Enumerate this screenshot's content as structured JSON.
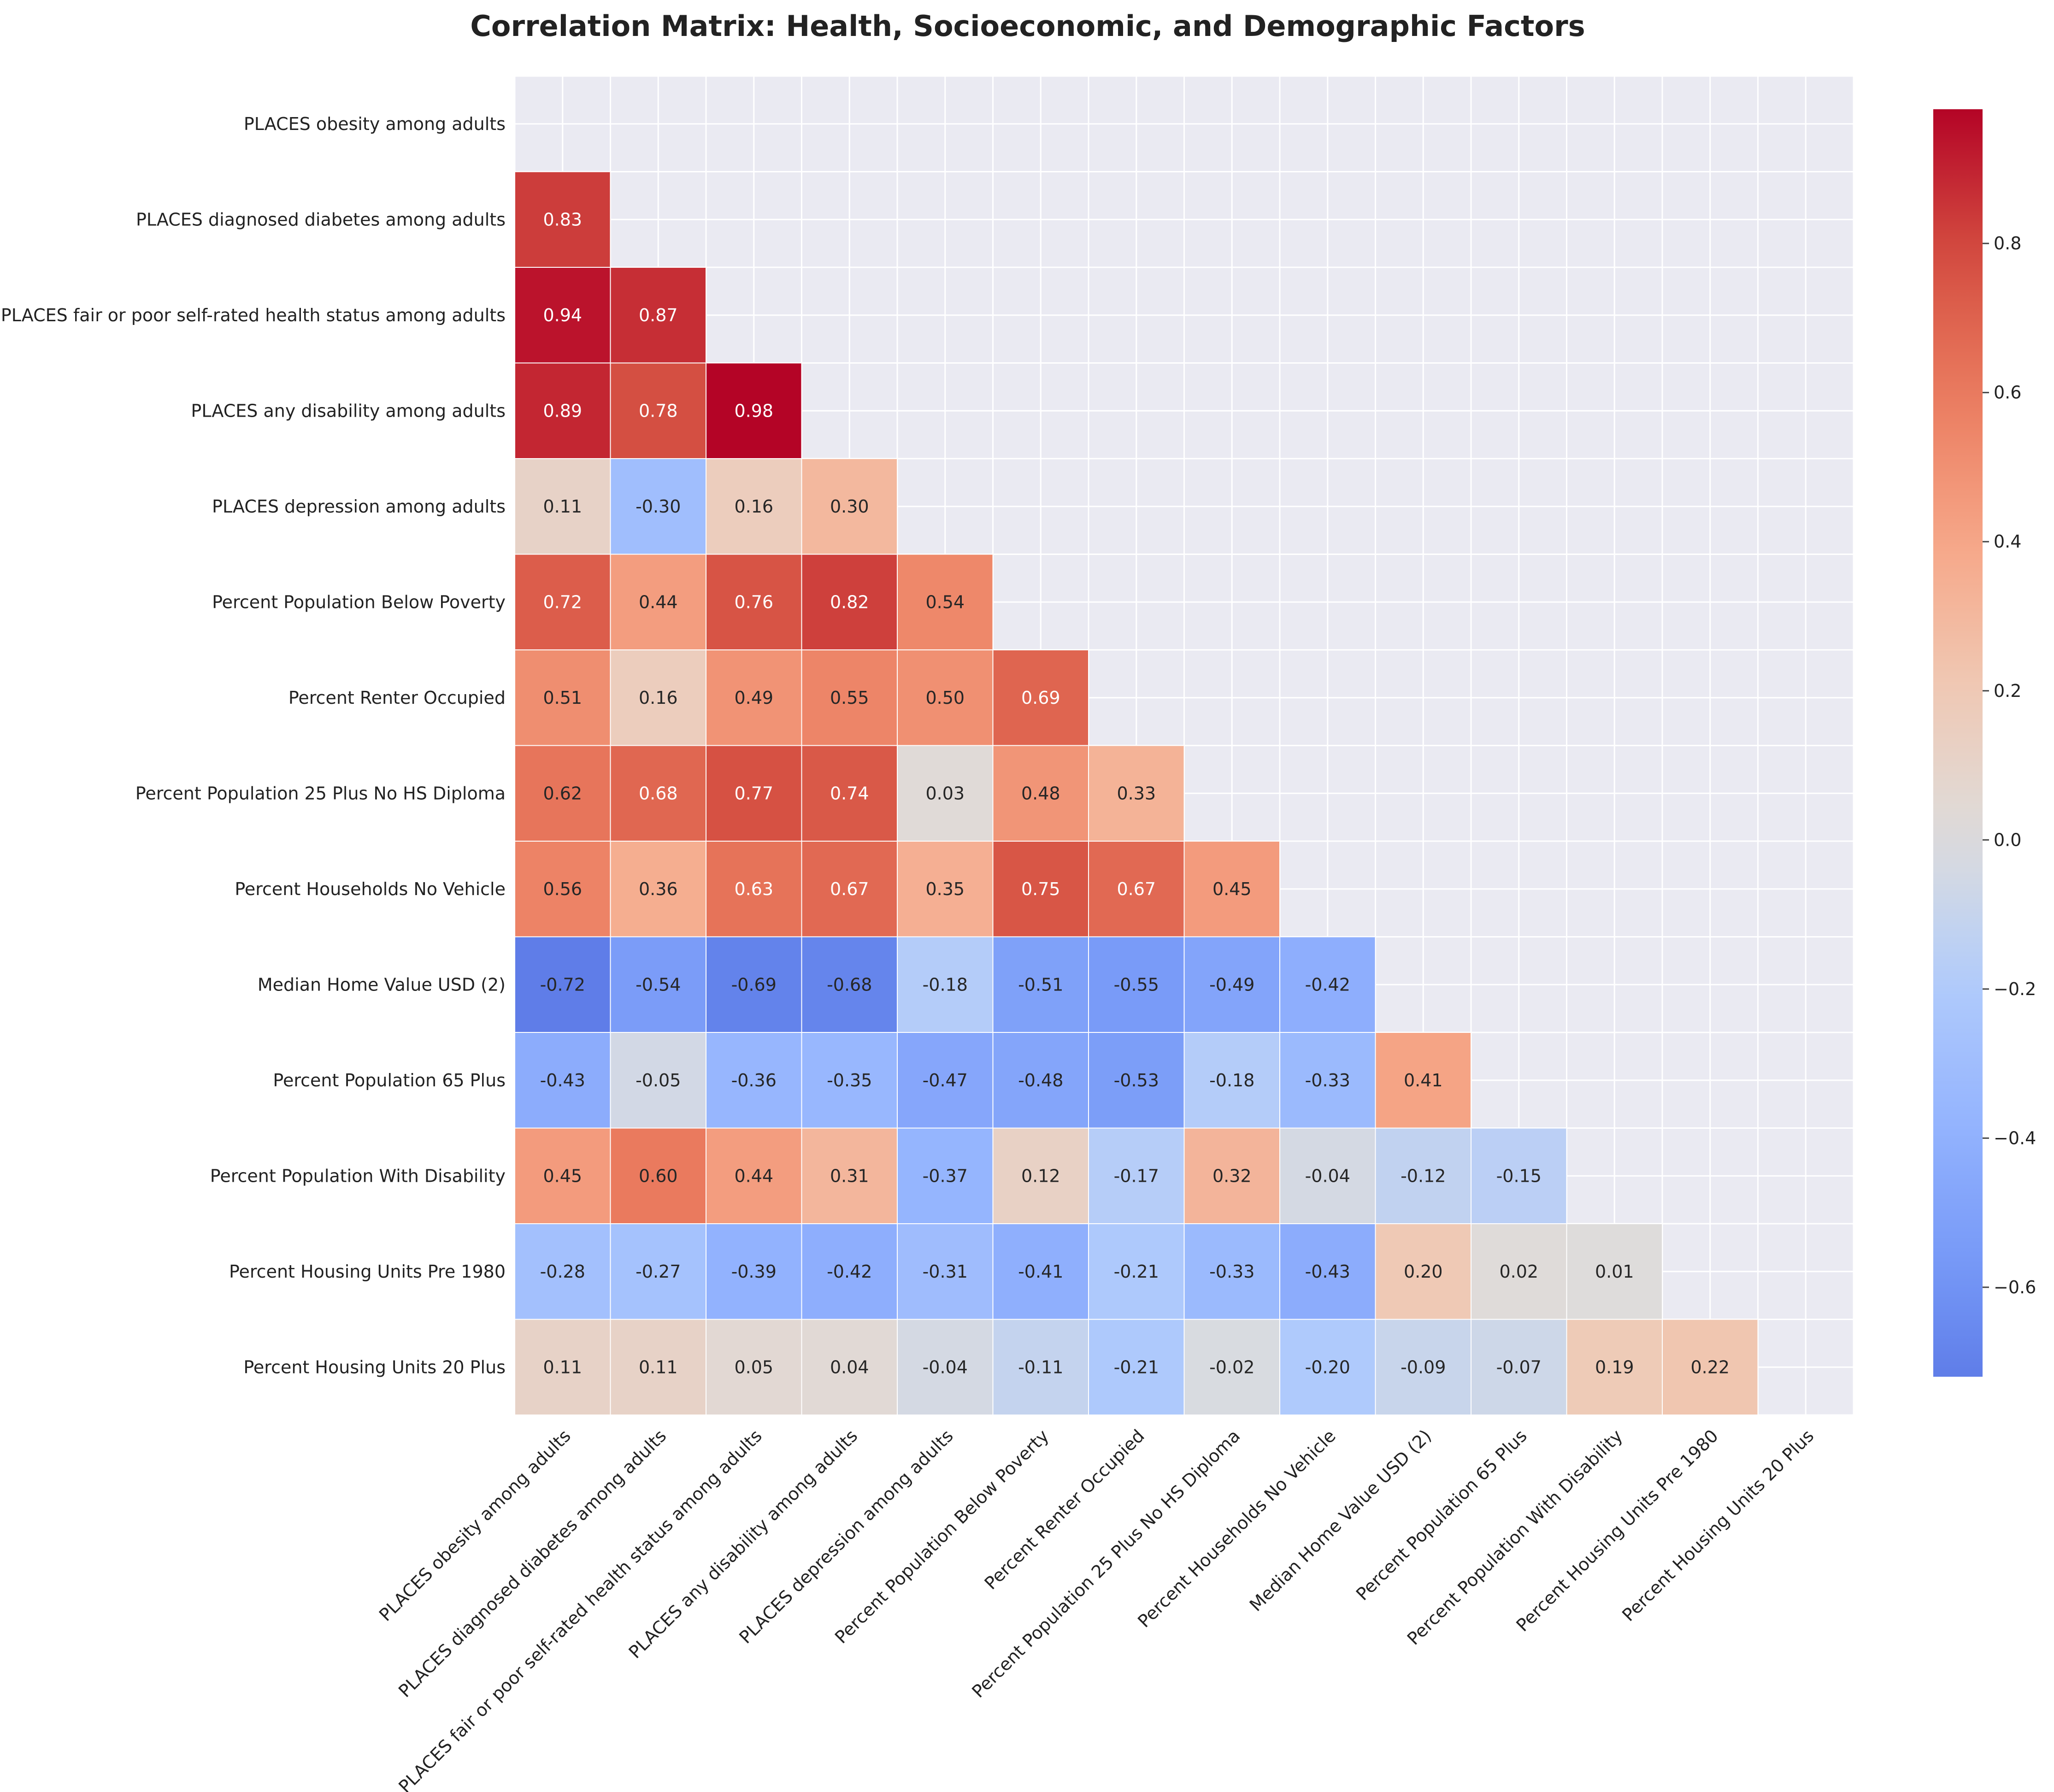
{
  "chart_data": {
    "type": "heatmap",
    "title": "Correlation Matrix: Health, Socioeconomic, and Demographic Factors",
    "xlabel": "",
    "ylabel": "",
    "variables": [
      "PLACES obesity among adults",
      "PLACES diagnosed diabetes among adults",
      "PLACES fair or poor self-rated health status among adults",
      "PLACES any disability among adults",
      "PLACES depression among adults",
      "Percent Population Below Poverty",
      "Percent Renter Occupied",
      "Percent Population 25 Plus No HS Diploma",
      "Percent Households No Vehicle",
      "Median Home Value USD (2)",
      "Percent Population 65 Plus",
      "Percent Population With Disability",
      "Percent Housing Units Pre 1980",
      "Percent Housing Units 20 Plus"
    ],
    "mask": "upper triangle including diagonal",
    "lower_triangle_values": [
      [],
      [
        0.83
      ],
      [
        0.94,
        0.87
      ],
      [
        0.89,
        0.78,
        0.98
      ],
      [
        0.11,
        -0.3,
        0.16,
        0.3
      ],
      [
        0.72,
        0.44,
        0.76,
        0.82,
        0.54
      ],
      [
        0.51,
        0.16,
        0.49,
        0.55,
        0.5,
        0.69
      ],
      [
        0.62,
        0.68,
        0.77,
        0.74,
        0.03,
        0.48,
        0.33
      ],
      [
        0.56,
        0.36,
        0.63,
        0.67,
        0.35,
        0.75,
        0.67,
        0.45
      ],
      [
        -0.72,
        -0.54,
        -0.69,
        -0.68,
        -0.18,
        -0.51,
        -0.55,
        -0.49,
        -0.42
      ],
      [
        -0.43,
        -0.05,
        -0.36,
        -0.35,
        -0.47,
        -0.48,
        -0.53,
        -0.18,
        -0.33,
        0.41
      ],
      [
        0.45,
        0.6,
        0.44,
        0.31,
        -0.37,
        0.12,
        -0.17,
        0.32,
        -0.04,
        -0.12,
        -0.15
      ],
      [
        -0.28,
        -0.27,
        -0.39,
        -0.42,
        -0.31,
        -0.41,
        -0.21,
        -0.33,
        -0.43,
        0.2,
        0.02,
        0.01
      ],
      [
        0.11,
        0.11,
        0.05,
        0.04,
        -0.04,
        -0.11,
        -0.21,
        -0.02,
        -0.2,
        -0.09,
        -0.07,
        0.19,
        0.22
      ]
    ],
    "value_format": "2 decimals",
    "colormap": "coolwarm",
    "color_range": [
      -0.72,
      0.98
    ],
    "center": 0,
    "colorbar": {
      "ticks": [
        -0.6,
        -0.4,
        -0.2,
        0.0,
        0.2,
        0.4,
        0.6,
        0.8
      ],
      "tick_labels": [
        "−0.6",
        "−0.4",
        "−0.2",
        "0.0",
        "0.2",
        "0.4",
        "0.6",
        "0.8"
      ],
      "placement": "right"
    },
    "grid": true,
    "colors": {
      "background": "#eaeaf2",
      "grid": "#ffffff",
      "cell_border": "#ffffff"
    }
  }
}
